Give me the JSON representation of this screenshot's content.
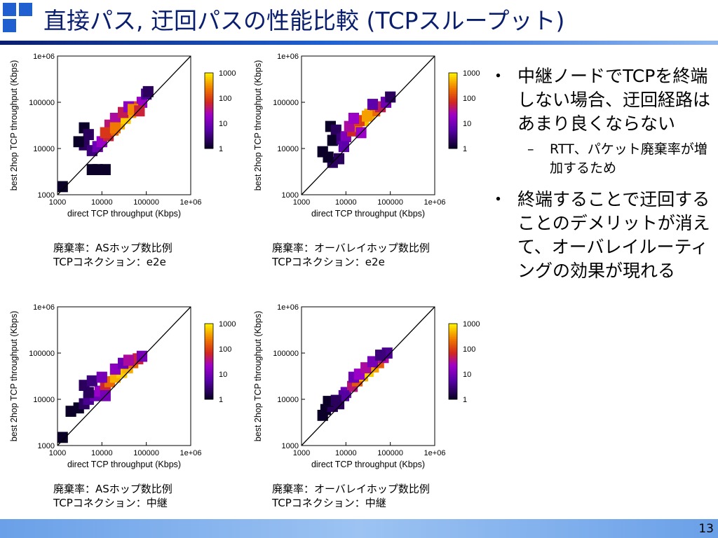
{
  "slide": {
    "title": "直接パス, 迂回パスの性能比較 (TCPスループット)",
    "page_number": "13",
    "colors": {
      "title": "#0a1e6e",
      "accent": "#1f5fd0",
      "footer": "#8fb6ee"
    }
  },
  "bullets": [
    {
      "text": "中継ノードでTCPを終端しない場合、迂回経路はあまり良くならない",
      "sub": [
        "RTT、パケット廃棄率が増加するため"
      ]
    },
    {
      "text": "終端することで迂回することのデメリットが消えて、オーバレイルーティングの効果が現れる",
      "sub": []
    }
  ],
  "chart_data": [
    {
      "type": "heatmap",
      "xlabel": "direct TCP throughput (Kbps)",
      "ylabel": "best 2hop TCP throughput (Kbps)",
      "xscale": "log",
      "yscale": "log",
      "xlim": [
        1000,
        1000000
      ],
      "ylim": [
        1000,
        1000000
      ],
      "xticks": [
        "1000",
        "10000",
        "100000",
        "1e+06"
      ],
      "yticks": [
        "1000",
        "10000",
        "100000",
        "1e+06"
      ],
      "colorbar": {
        "scale": "log",
        "ticks": [
          "1",
          "10",
          "100",
          "1000"
        ],
        "range": [
          1,
          1000
        ]
      },
      "reference_line": "y = x",
      "caption": [
        "廃棄率：ASホップ数比例",
        "TCPコネクション：e2e"
      ],
      "cells": [
        [
          8000,
          3500,
          1
        ],
        [
          12000,
          3500,
          1
        ],
        [
          6000,
          3500,
          1
        ],
        [
          1300,
          1500,
          1
        ],
        [
          4000,
          28000,
          1
        ],
        [
          4000,
          12000,
          2
        ],
        [
          5000,
          20000,
          2
        ],
        [
          3000,
          14000,
          1
        ],
        [
          6000,
          9000,
          3
        ],
        [
          8000,
          11000,
          8
        ],
        [
          10000,
          14000,
          20
        ],
        [
          14000,
          19000,
          60
        ],
        [
          18000,
          25000,
          180
        ],
        [
          25000,
          34000,
          500
        ],
        [
          34000,
          45000,
          700
        ],
        [
          45000,
          60000,
          400
        ],
        [
          60000,
          80000,
          120
        ],
        [
          80000,
          100000,
          20
        ],
        [
          100000,
          150000,
          4
        ],
        [
          110000,
          170000,
          2
        ],
        [
          15000,
          32000,
          40
        ],
        [
          20000,
          45000,
          30
        ],
        [
          30000,
          60000,
          50
        ],
        [
          40000,
          80000,
          15
        ],
        [
          12000,
          22000,
          90
        ],
        [
          20000,
          28000,
          250
        ],
        [
          50000,
          70000,
          300
        ],
        [
          70000,
          65000,
          60
        ]
      ]
    },
    {
      "type": "heatmap",
      "xlabel": "direct TCP throughput (Kbps)",
      "ylabel": "best 2hop TCP throughput (Kbps)",
      "xscale": "log",
      "yscale": "log",
      "xlim": [
        1000,
        1000000
      ],
      "ylim": [
        1000,
        1000000
      ],
      "xticks": [
        "1000",
        "10000",
        "100000",
        "1e+06"
      ],
      "yticks": [
        "1000",
        "10000",
        "100000",
        "1e+06"
      ],
      "colorbar": {
        "scale": "log",
        "ticks": [
          "1",
          "10",
          "100",
          "1000"
        ],
        "range": [
          1,
          1000
        ]
      },
      "reference_line": "y = x",
      "caption": [
        "廃棄率：オーバレイホップ数比例",
        "TCPコネクション：e2e"
      ],
      "cells": [
        [
          5000,
          5000,
          2
        ],
        [
          7000,
          6000,
          2
        ],
        [
          4000,
          6500,
          1
        ],
        [
          3000,
          8500,
          1
        ],
        [
          4500,
          30000,
          1
        ],
        [
          6000,
          25000,
          2
        ],
        [
          5000,
          15000,
          1
        ],
        [
          8000,
          16000,
          3
        ],
        [
          10000,
          18000,
          12
        ],
        [
          14000,
          24000,
          70
        ],
        [
          18000,
          30000,
          250
        ],
        [
          25000,
          40000,
          600
        ],
        [
          34000,
          55000,
          500
        ],
        [
          45000,
          65000,
          200
        ],
        [
          60000,
          80000,
          50
        ],
        [
          80000,
          100000,
          8
        ],
        [
          100000,
          130000,
          2
        ],
        [
          12000,
          30000,
          30
        ],
        [
          20000,
          40000,
          100
        ],
        [
          30000,
          50000,
          400
        ],
        [
          15000,
          45000,
          20
        ],
        [
          40000,
          90000,
          6
        ],
        [
          9000,
          11000,
          6
        ],
        [
          22000,
          22000,
          20
        ]
      ]
    },
    {
      "type": "heatmap",
      "xlabel": "direct TCP throughput (Kbps)",
      "ylabel": "best 2hop TCP throughput (Kbps)",
      "xscale": "log",
      "yscale": "log",
      "xlim": [
        1000,
        1000000
      ],
      "ylim": [
        1000,
        1000000
      ],
      "xticks": [
        "1000",
        "10000",
        "100000",
        "1e+06"
      ],
      "yticks": [
        "1000",
        "10000",
        "100000",
        "1e+06"
      ],
      "colorbar": {
        "scale": "log",
        "ticks": [
          "1",
          "10",
          "100",
          "1000"
        ],
        "range": [
          1,
          1000
        ]
      },
      "reference_line": "y = x",
      "caption": [
        "廃棄率：ASホップ数比例",
        "TCPコネクション：中継"
      ],
      "cells": [
        [
          1300,
          1500,
          1
        ],
        [
          3000,
          6500,
          1
        ],
        [
          4000,
          8000,
          2
        ],
        [
          5000,
          10000,
          4
        ],
        [
          7000,
          12000,
          8
        ],
        [
          9000,
          15000,
          20
        ],
        [
          12000,
          19000,
          60
        ],
        [
          15000,
          24000,
          200
        ],
        [
          20000,
          30000,
          500
        ],
        [
          28000,
          38000,
          700
        ],
        [
          38000,
          48000,
          500
        ],
        [
          50000,
          62000,
          200
        ],
        [
          65000,
          75000,
          60
        ],
        [
          80000,
          85000,
          10
        ],
        [
          4000,
          20000,
          2
        ],
        [
          6000,
          25000,
          3
        ],
        [
          10000,
          30000,
          10
        ],
        [
          20000,
          45000,
          15
        ],
        [
          30000,
          60000,
          8
        ],
        [
          12000,
          12000,
          10
        ],
        [
          5000,
          14000,
          2
        ],
        [
          2000,
          5500,
          1
        ],
        [
          40000,
          70000,
          30
        ]
      ]
    },
    {
      "type": "heatmap",
      "xlabel": "direct TCP throughput (Kbps)",
      "ylabel": "best 2hop TCP throughput (Kbps)",
      "xscale": "log",
      "yscale": "log",
      "xlim": [
        1000,
        1000000
      ],
      "ylim": [
        1000,
        1000000
      ],
      "xticks": [
        "1000",
        "10000",
        "100000",
        "1e+06"
      ],
      "yticks": [
        "1000",
        "10000",
        "100000",
        "1e+06"
      ],
      "colorbar": {
        "scale": "log",
        "ticks": [
          "1",
          "10",
          "100",
          "1000"
        ],
        "range": [
          1,
          1000
        ]
      },
      "reference_line": "y = x",
      "caption": [
        "廃棄率：オーバレイホップ数比例",
        "TCPコネクション：中継"
      ],
      "cells": [
        [
          3000,
          4500,
          1
        ],
        [
          3500,
          6000,
          1
        ],
        [
          5000,
          7000,
          2
        ],
        [
          7000,
          8000,
          2
        ],
        [
          4000,
          9000,
          1
        ],
        [
          10000,
          14000,
          8
        ],
        [
          14000,
          19000,
          40
        ],
        [
          18000,
          25000,
          150
        ],
        [
          24000,
          32000,
          500
        ],
        [
          32000,
          40000,
          700
        ],
        [
          42000,
          50000,
          400
        ],
        [
          55000,
          62000,
          150
        ],
        [
          70000,
          80000,
          30
        ],
        [
          85000,
          100000,
          4
        ],
        [
          15000,
          30000,
          8
        ],
        [
          20000,
          35000,
          20
        ],
        [
          28000,
          48000,
          30
        ],
        [
          40000,
          65000,
          10
        ],
        [
          60000,
          90000,
          3
        ],
        [
          9000,
          12000,
          5
        ],
        [
          6000,
          9500,
          2
        ]
      ]
    }
  ]
}
